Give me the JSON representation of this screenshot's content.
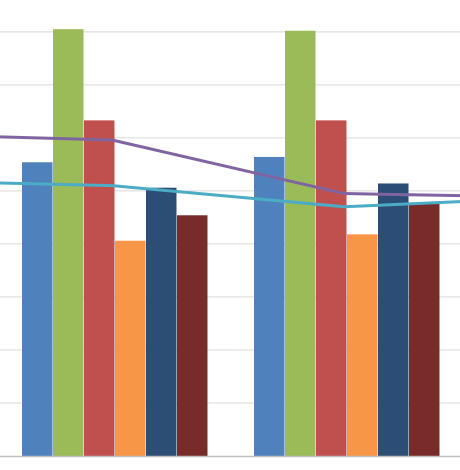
{
  "chart_data": {
    "type": "bar",
    "categories": [
      "",
      ""
    ],
    "series": [
      {
        "values": [
          55.4,
          56.4
        ],
        "color": "#4f81bd"
      },
      {
        "values": [
          80.5,
          80.2
        ],
        "color": "#9bbb59"
      },
      {
        "values": [
          63.3,
          63.3
        ],
        "color": "#c0504d"
      },
      {
        "values": [
          40.6,
          41.8
        ],
        "color": "#f79646"
      },
      {
        "values": [
          50.6,
          51.4
        ],
        "color": "#2c4d75"
      },
      {
        "values": [
          45.4,
          47.6
        ],
        "color": "#772c2a"
      }
    ],
    "line_series": [
      {
        "values": [
          60.2,
          59.6,
          49.5,
          49.1
        ],
        "color": "#8064a2"
      },
      {
        "values": [
          51.5,
          51.0,
          47.0,
          48.0
        ],
        "color": "#4bacc6"
      }
    ],
    "ylim": [
      0,
      86
    ],
    "grid": true,
    "colors": {
      "gridline": "#d9d9d9",
      "axis": "#bfbfbf",
      "background": "#ffffff"
    }
  }
}
